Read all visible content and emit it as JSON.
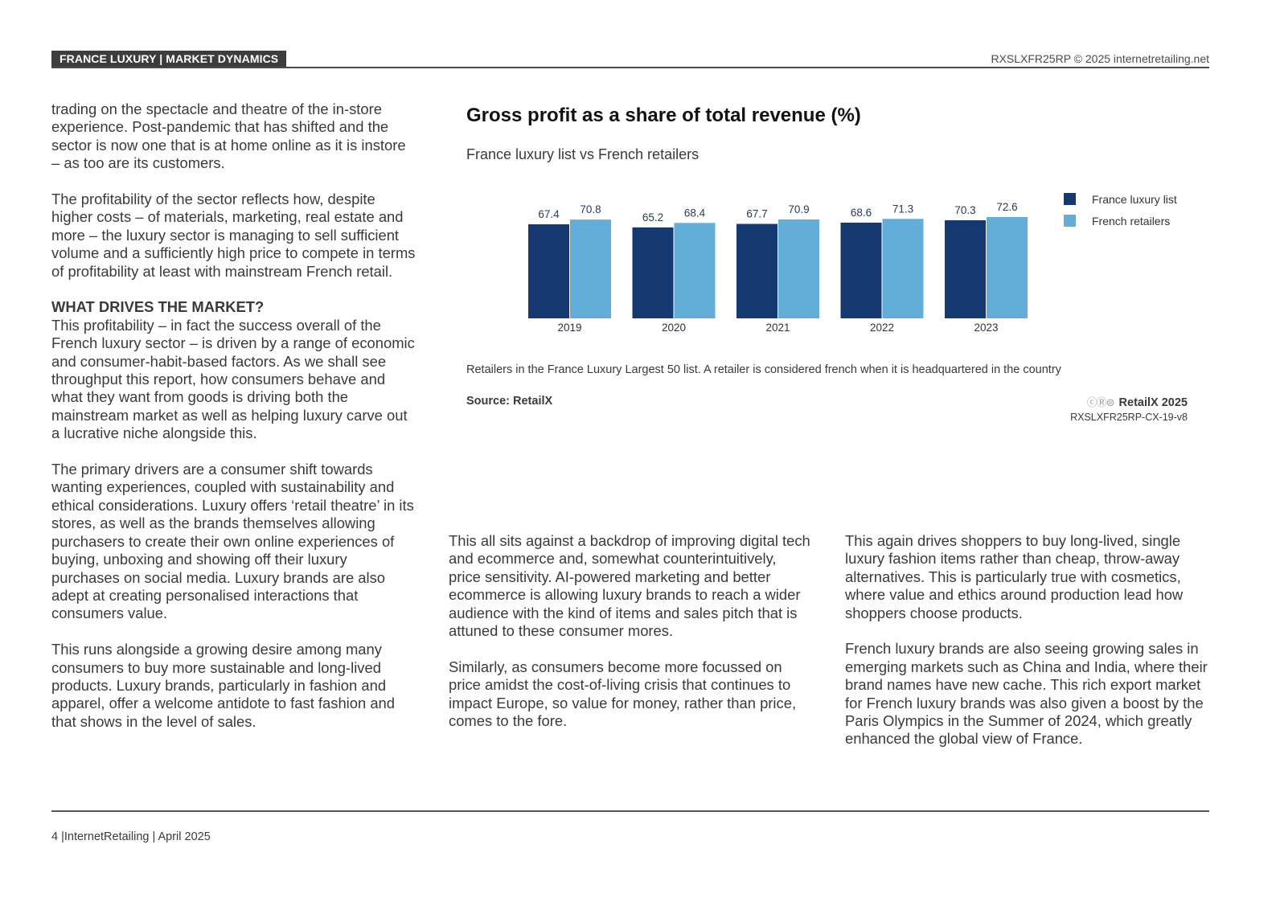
{
  "header": {
    "section_tag": "FRANCE LUXURY | MARKET DYNAMICS",
    "report_code": "RXSLXFR25RP © 2025 internetretailing.net"
  },
  "columns": {
    "col1": {
      "p1": "trading on the spectacle and theatre of the in-store experience. Post-pandemic that has shifted and the sector is now one that is at home online as it is instore – as too are its customers.",
      "p2": "The profitability of the sector reflects how, despite higher costs – of materials, marketing, real estate and more – the luxury sector is managing to sell sufficient volume and a sufficiently high price to compete in terms of profitability at least with mainstream French retail.",
      "heading": "WHAT DRIVES THE MARKET?",
      "p3": "This profitability – in fact the success overall of the French luxury sector – is driven by a range of economic and consumer-habit-based factors. As we shall see throughput this report, how consumers behave and what they want from goods is driving both the mainstream market as well as helping luxury carve out a lucrative niche alongside this.",
      "p4": "The primary drivers are a consumer shift towards wanting experiences, coupled with sustainability and ethical considerations. Luxury offers ‘retail theatre’ in its stores, as well as the brands themselves allowing purchasers to create their own online experiences of buying, unboxing and showing off their luxury purchases on social media. Luxury brands are also adept at creating personalised interactions that consumers value.",
      "p5": "This runs alongside a growing desire among many consumers to buy more sustainable and long-lived products. Luxury brands, particularly in fashion and apparel, offer a welcome antidote to fast fashion and that shows in the level of sales."
    },
    "col2": {
      "p1": "This all sits against a backdrop of improving digital tech and ecommerce and, somewhat counterintuitively, price sensitivity. AI-powered marketing and better ecommerce is allowing luxury brands to reach a wider audience with the kind of items and sales pitch that is attuned to these consumer mores.",
      "p2": "Similarly, as consumers become more focussed on price amidst the cost-of-living crisis that continues to impact Europe, so value for money, rather than price, comes to the fore."
    },
    "col3": {
      "p1": "This again drives shoppers to buy long-lived, single luxury fashion items rather than cheap, throw-away alternatives. This is particularly true with cosmetics, where value and ethics around production lead how shoppers choose products.",
      "p2": "French luxury brands are also seeing growing sales in emerging markets such as China and India, where their brand names have new cache. This rich export market for French luxury brands was also given a boost by the Paris Olympics in the Summer of 2024, which greatly enhanced the global view of France."
    }
  },
  "chart_data": {
    "type": "bar",
    "title": "Gross profit as a share of total revenue (%)",
    "subtitle": "France luxury list vs French retailers",
    "categories": [
      "2019",
      "2020",
      "2021",
      "2022",
      "2023"
    ],
    "series": [
      {
        "name": "France luxury list",
        "values": [
          67.4,
          65.2,
          67.7,
          68.6,
          70.3
        ],
        "color": "#14386f"
      },
      {
        "name": "French retailers",
        "values": [
          70.8,
          68.4,
          70.9,
          71.3,
          72.6
        ],
        "color": "#62aed8"
      }
    ],
    "ylim": [
      0,
      72.6
    ],
    "legend_position": "top-right",
    "grid": false,
    "note": "Retailers in the France Luxury Largest 50 list. A retailer is considered french when it is headquartered in the country",
    "source": "Source: RetailX",
    "credit": "RetailX 2025",
    "credit_icons": "cc-by-nd-icon",
    "chart_code": "RXSLXFR25RP-CX-19-v8"
  },
  "footer": {
    "text": "4 |InternetRetailing | April 2025"
  }
}
